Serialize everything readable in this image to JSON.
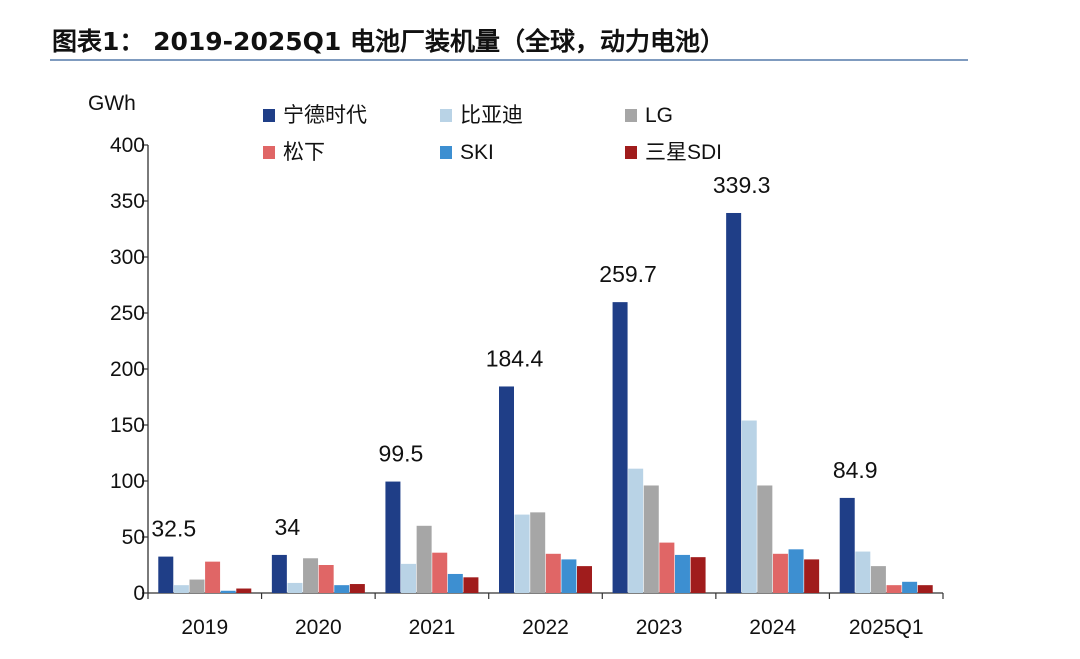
{
  "title": "图表1： 2019-2025Q1 电池厂装机量（全球，动力电池）",
  "chart_data": {
    "type": "bar",
    "title": "图表1： 2019-2025Q1 电池厂装机量（全球，动力电池）",
    "ylabel": "GWh",
    "xlabel": "",
    "ylim": [
      0,
      400
    ],
    "yticks": [
      0,
      50,
      100,
      150,
      200,
      250,
      300,
      350,
      400
    ],
    "grid": false,
    "legend_position": "top",
    "categories": [
      "2019",
      "2020",
      "2021",
      "2022",
      "2023",
      "2024",
      "2025Q1"
    ],
    "series": [
      {
        "name": "宁德时代",
        "color": "#1f3e87",
        "values": [
          32.5,
          34,
          99.5,
          184.4,
          259.7,
          339.3,
          84.9
        ]
      },
      {
        "name": "比亚迪",
        "color": "#b9d3e6",
        "values": [
          7,
          9,
          26,
          70,
          111,
          154,
          37
        ]
      },
      {
        "name": "LG",
        "color": "#a6a6a6",
        "values": [
          12,
          31,
          60,
          72,
          96,
          96,
          24
        ]
      },
      {
        "name": "松下",
        "color": "#e06666",
        "values": [
          28,
          25,
          36,
          35,
          45,
          35,
          7
        ]
      },
      {
        "name": "SKI",
        "color": "#3d8fd1",
        "values": [
          2,
          7,
          17,
          30,
          34,
          39,
          10
        ]
      },
      {
        "name": "三星SDI",
        "color": "#a01c1c",
        "values": [
          4,
          8,
          14,
          24,
          32,
          30,
          7
        ]
      }
    ],
    "data_labels": {
      "series": "宁德时代",
      "labels": [
        "32.5",
        "34",
        "99.5",
        "184.4",
        "259.7",
        "339.3",
        "84.9"
      ]
    }
  }
}
